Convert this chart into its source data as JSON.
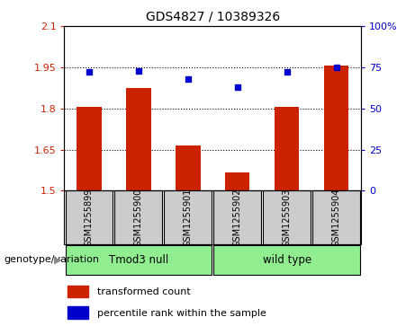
{
  "title": "GDS4827 / 10389326",
  "samples": [
    "GSM1255899",
    "GSM1255900",
    "GSM1255901",
    "GSM1255902",
    "GSM1255903",
    "GSM1255904"
  ],
  "red_values": [
    1.805,
    1.875,
    1.665,
    1.565,
    1.805,
    1.955
  ],
  "blue_values": [
    72,
    73,
    68,
    63,
    72,
    75
  ],
  "ylim_left": [
    1.5,
    2.1
  ],
  "ylim_right": [
    0,
    100
  ],
  "yticks_left": [
    1.5,
    1.65,
    1.8,
    1.95,
    2.1
  ],
  "yticks_right": [
    0,
    25,
    50,
    75,
    100
  ],
  "ytick_labels_left": [
    "1.5",
    "1.65",
    "1.8",
    "1.95",
    "2.1"
  ],
  "ytick_labels_right": [
    "0",
    "25",
    "50",
    "75",
    "100%"
  ],
  "group_labels": [
    "Tmod3 null",
    "wild type"
  ],
  "group_row_label": "genotype/variation",
  "legend_red_label": "transformed count",
  "legend_blue_label": "percentile rank within the sample",
  "bar_color": "#cc2200",
  "dot_color": "#0000cc",
  "bar_width": 0.5,
  "base_value": 1.5,
  "plot_bg_color": "#ffffff",
  "label_area_color": "#cccccc",
  "group_area_color": "#90EE90",
  "fig_width": 4.61,
  "fig_height": 3.63,
  "dpi": 100
}
